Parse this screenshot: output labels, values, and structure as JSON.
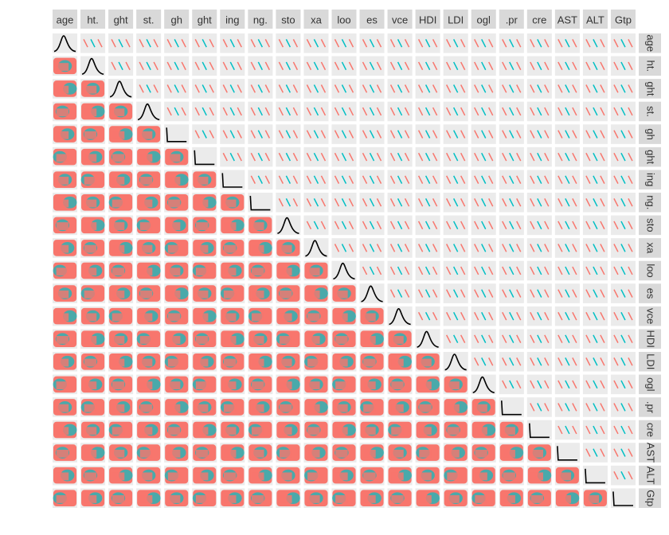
{
  "chart_data": {
    "type": "pairs",
    "variables": [
      "age",
      "ht.",
      "ght",
      "st.",
      "gh",
      "ght",
      "ing",
      "ng.",
      "sto",
      "xa",
      "loo",
      "es",
      "vce",
      "HDI",
      "LDI",
      "ogl",
      ".pr",
      "cre",
      "AST",
      "ALT",
      "Gtp"
    ],
    "colors": [
      "#f8766d",
      "#00bfc4"
    ]
  }
}
